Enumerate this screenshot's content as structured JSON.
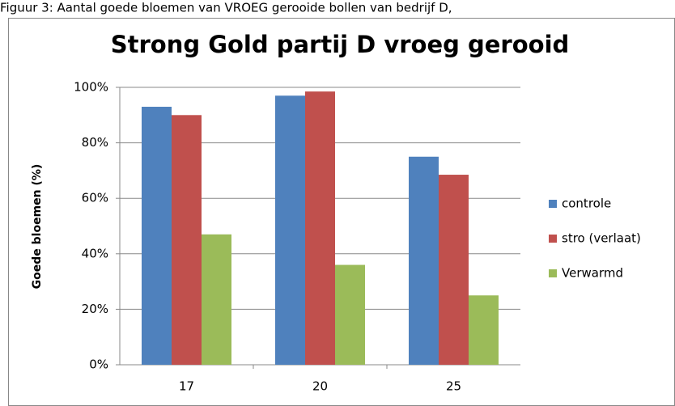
{
  "caption": "Figuur 3: Aantal goede bloemen van VROEG gerooide bollen van bedrijf D,",
  "chart_data": {
    "type": "bar",
    "title": "Strong Gold partij D vroeg gerooid",
    "y_label": "Goede bloemen (%)",
    "categories": [
      "17",
      "20",
      "25"
    ],
    "series": [
      {
        "name": "controle",
        "color": "#4f81bd",
        "values": [
          93,
          97,
          75
        ]
      },
      {
        "name": "stro (verlaat)",
        "color": "#c0504d",
        "values": [
          90,
          98.5,
          68.5
        ]
      },
      {
        "name": "Verwarmd",
        "color": "#9bbb59",
        "values": [
          47,
          36,
          25
        ]
      }
    ],
    "ylim": [
      0,
      100
    ],
    "yticks": [
      {
        "value": 0,
        "label": "0%"
      },
      {
        "value": 20,
        "label": "20%"
      },
      {
        "value": 40,
        "label": "40%"
      },
      {
        "value": 60,
        "label": "60%"
      },
      {
        "value": 80,
        "label": "80%"
      },
      {
        "value": 100,
        "label": "100%"
      }
    ],
    "grid": true,
    "legend": "right"
  }
}
